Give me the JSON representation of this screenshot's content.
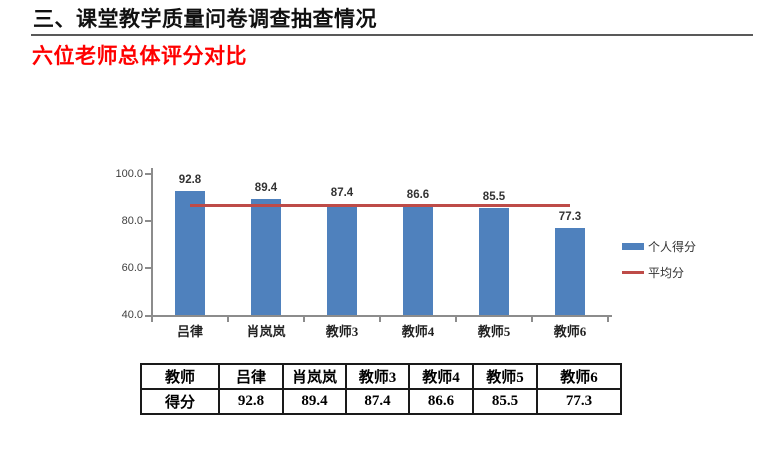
{
  "header": {
    "title": "三、课堂教学质量问卷调查抽查情况",
    "subtitle": "六位老师总体评分对比"
  },
  "chart_data": {
    "type": "bar",
    "title": "",
    "categories": [
      "吕律",
      "肖岚岚",
      "教师3",
      "教师4",
      "教师5",
      "教师6"
    ],
    "series": [
      {
        "name": "个人得分",
        "type": "bar",
        "values": [
          92.8,
          89.4,
          87.4,
          86.6,
          85.5,
          77.3
        ]
      },
      {
        "name": "平均分",
        "type": "line",
        "value": 86.5
      }
    ],
    "ylim": [
      40,
      100
    ],
    "yticks": [
      100.0,
      80.0,
      60.0,
      40.0
    ],
    "ytick_labels": [
      "100.0",
      "80.0",
      "60.0",
      "40.0"
    ],
    "grid": false,
    "legend_position": "right",
    "legend": [
      "个人得分",
      "平均分"
    ]
  },
  "table": {
    "header_row": [
      "教师",
      "吕律",
      "肖岚岚",
      "教师3",
      "教师4",
      "教师5",
      "教师6"
    ],
    "data_row": [
      "得分",
      "92.8",
      "89.4",
      "87.4",
      "86.6",
      "85.5",
      "77.3"
    ]
  },
  "colors": {
    "bar": "#4F81BD",
    "average_line": "#BE4B48",
    "subtitle": "#FF0000",
    "divider": "#595959",
    "axis": "#8C8C8C"
  }
}
